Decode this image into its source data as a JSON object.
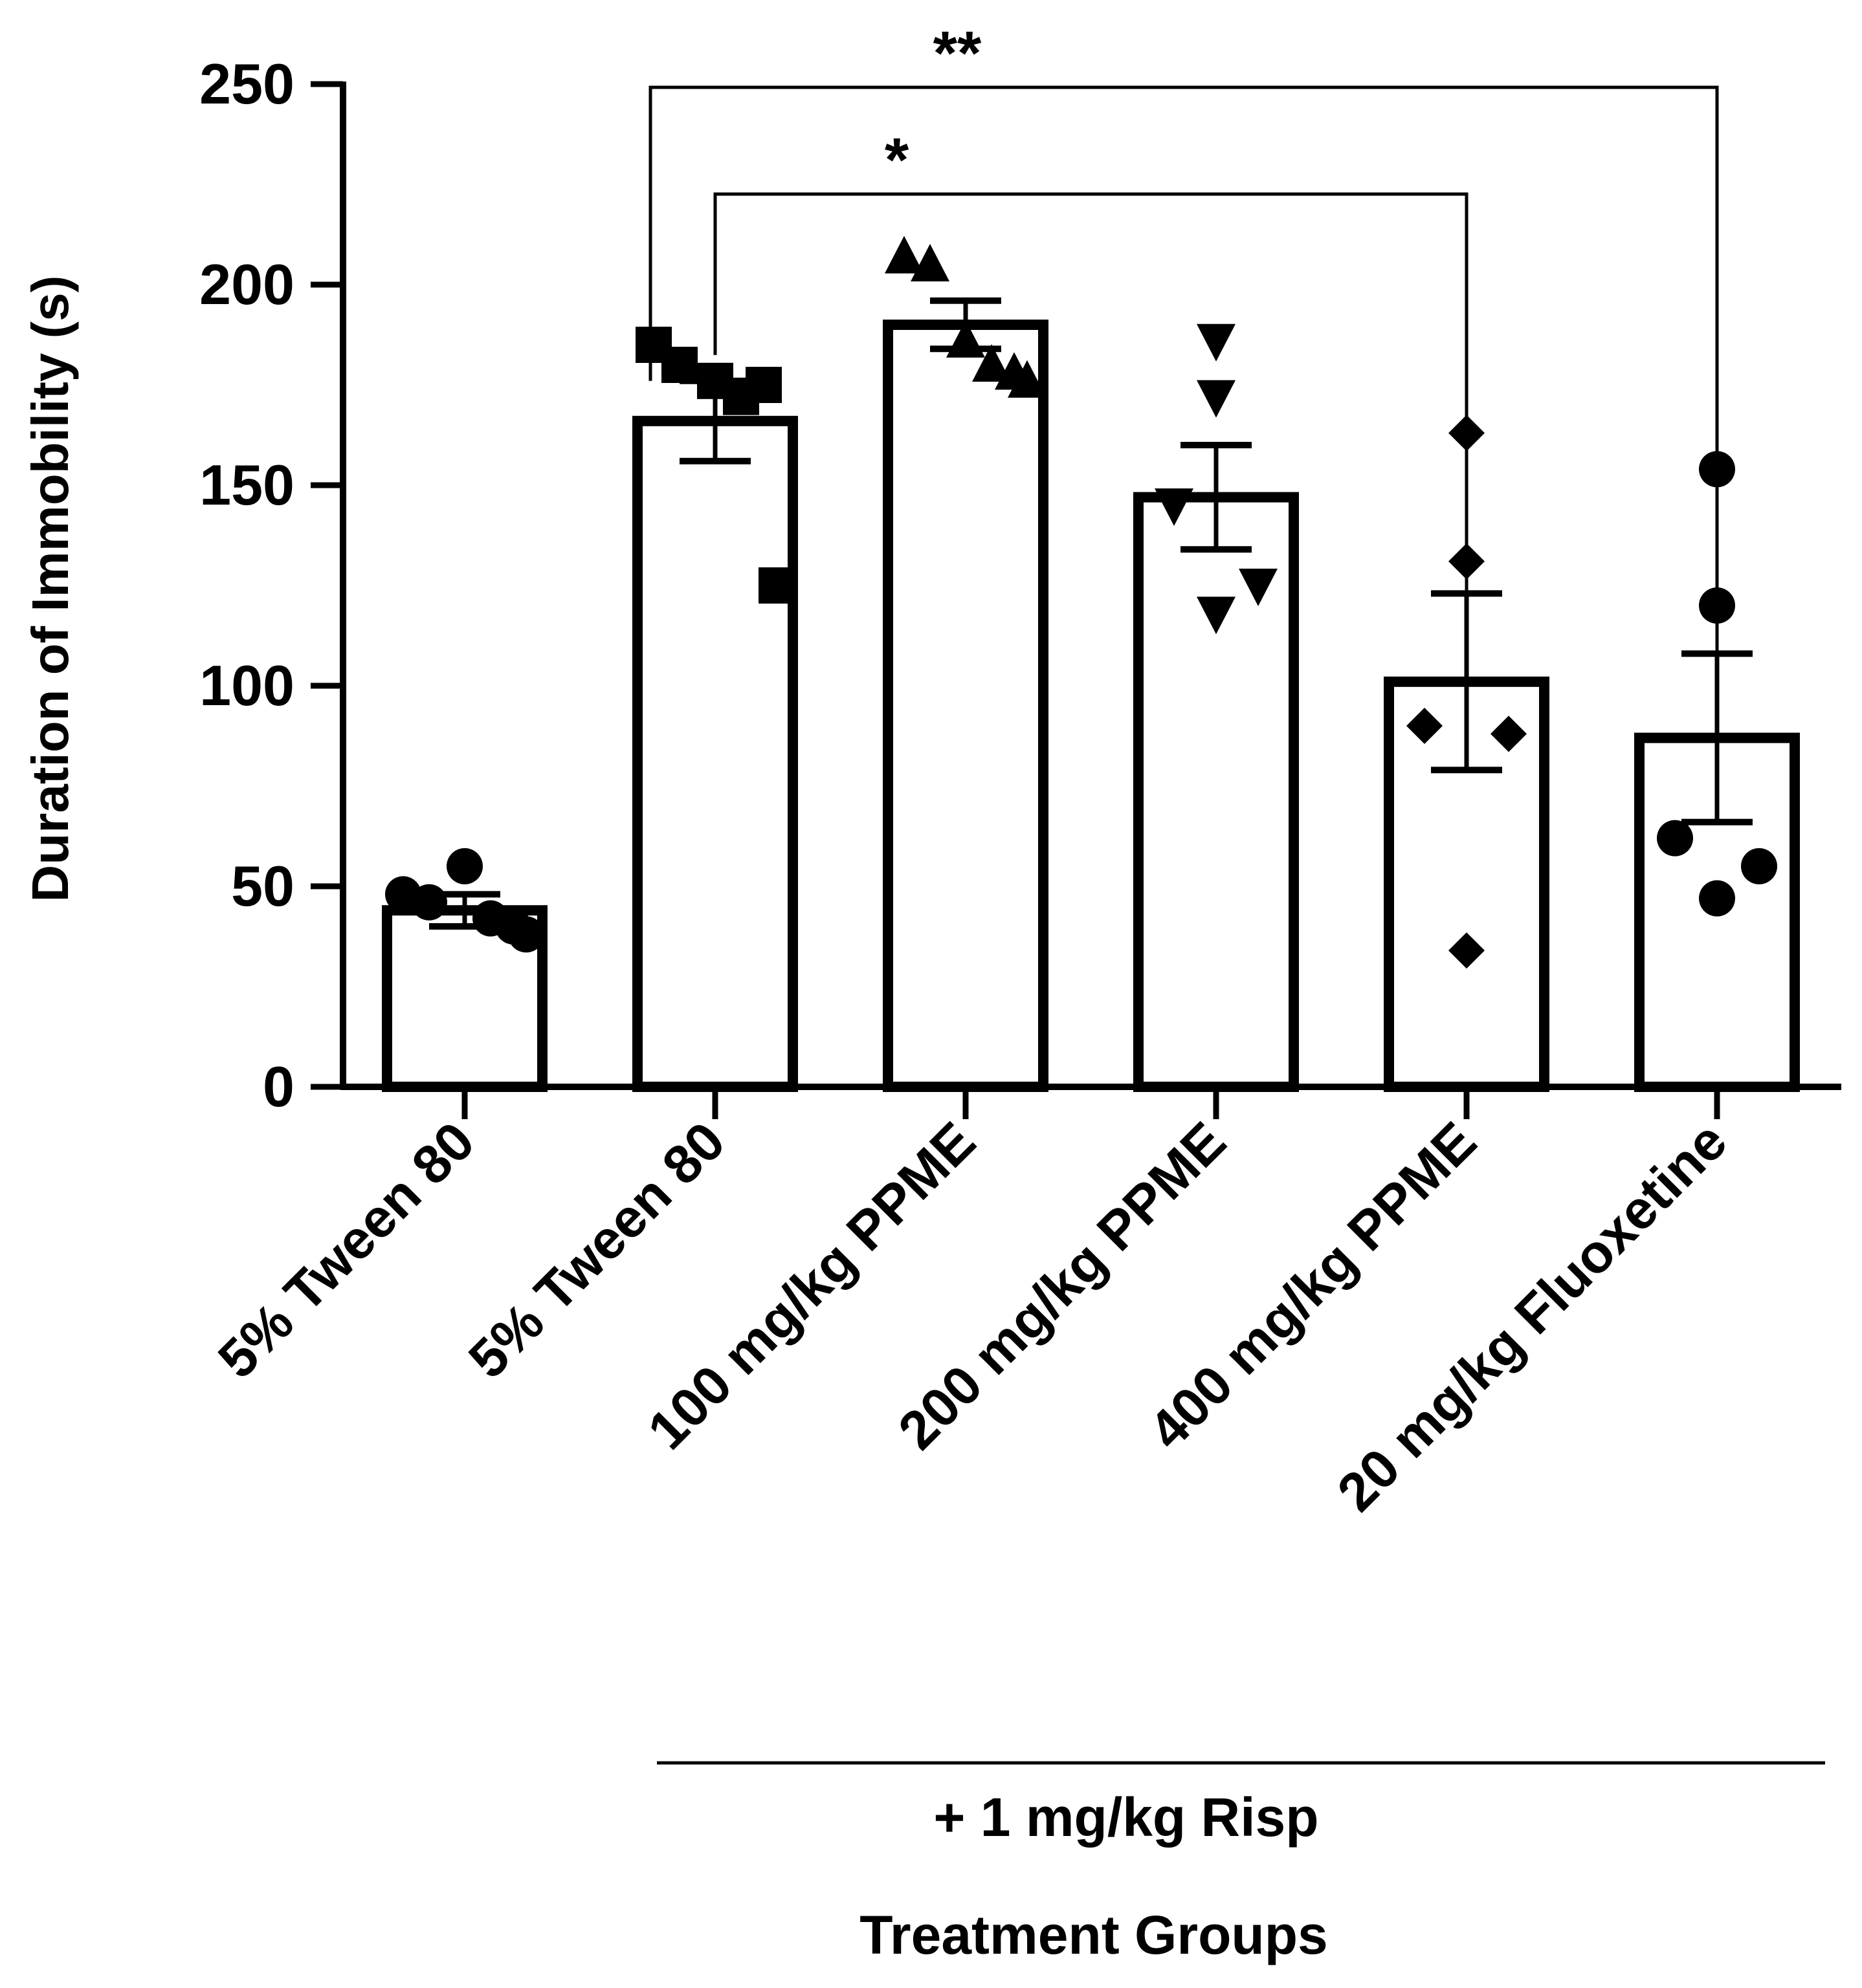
{
  "chart_data": {
    "type": "bar",
    "title": "",
    "ylabel": "Duration of Immobility (s)",
    "xlabel": "Treatment Groups",
    "ylim": [
      0,
      250
    ],
    "yticks": [
      0,
      50,
      100,
      150,
      200,
      250
    ],
    "ytick_labels": [
      "0",
      "50",
      "100",
      "150",
      "200",
      "250"
    ],
    "categories": [
      "5% Tween 80",
      "5% Tween 80",
      "100 mg/kg PPME",
      "200 mg/kg PPME",
      "400 mg/kg PPME",
      "20 mg/kg Fluoxetine"
    ],
    "means": [
      44,
      166,
      190,
      147,
      101,
      87
    ],
    "sem": [
      4,
      10,
      6,
      13,
      22,
      21
    ],
    "markers": [
      "circle",
      "square",
      "triangle-up",
      "triangle-down",
      "diamond",
      "circle"
    ],
    "points": [
      [
        48,
        46,
        55,
        42,
        40,
        38
      ],
      [
        185,
        180,
        176,
        172,
        175,
        125
      ],
      [
        207,
        205,
        186,
        180,
        178,
        176
      ],
      [
        186,
        172,
        145,
        125,
        118
      ],
      [
        163,
        131,
        90,
        88,
        34
      ],
      [
        154,
        120,
        62,
        55,
        47
      ]
    ],
    "group_bracket_label": "+ 1 mg/kg Risp",
    "significance": [
      {
        "from": 1,
        "to": 4,
        "label": "*"
      },
      {
        "from": 1,
        "to": 5,
        "label": "**"
      }
    ]
  }
}
